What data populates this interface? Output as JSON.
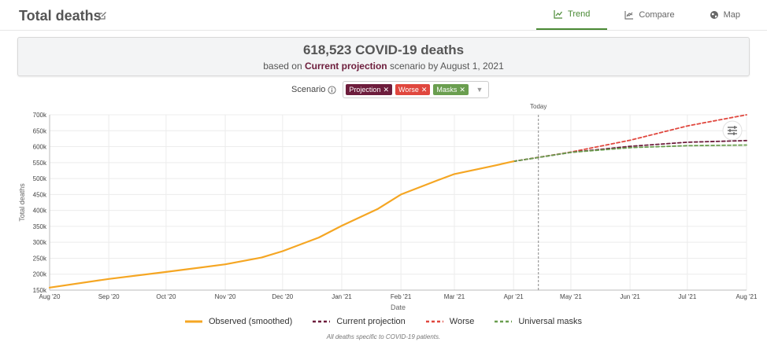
{
  "header": {
    "title": "Total deaths",
    "tabs": [
      {
        "label": "Trend",
        "active": true
      },
      {
        "label": "Compare",
        "active": false
      },
      {
        "label": "Map",
        "active": false
      }
    ]
  },
  "summary": {
    "headline": "618,523 COVID-19 deaths",
    "prefix": "based on ",
    "scenario": "Current projection",
    "suffix": " scenario by August 1, 2021"
  },
  "scenario_filter": {
    "label": "Scenario",
    "chips": [
      {
        "label": "Projection",
        "color": "#6d1d3c"
      },
      {
        "label": "Worse",
        "color": "#e0473e"
      },
      {
        "label": "Masks",
        "color": "#6a9e4f"
      }
    ]
  },
  "footnote": "All deaths specific to COVID-19 patients.",
  "chart_data": {
    "type": "line",
    "xlabel": "Date",
    "ylabel": "Total deaths",
    "x_ticks": [
      "Aug '20",
      "Sep '20",
      "Oct '20",
      "Nov '20",
      "Dec '20",
      "Jan '21",
      "Feb '21",
      "Mar '21",
      "Apr '21",
      "May '21",
      "Jun '21",
      "Jul '21",
      "Aug '21"
    ],
    "y_ticks": [
      "150k",
      "200k",
      "250k",
      "300k",
      "350k",
      "400k",
      "450k",
      "500k",
      "550k",
      "600k",
      "650k",
      "700k"
    ],
    "ylim": [
      150000,
      700000
    ],
    "today_label": "Today",
    "today_x": "2021-04-14",
    "grid": true,
    "legend_position": "bottom",
    "series": [
      {
        "name": "Observed (smoothed)",
        "color": "#f5a623",
        "style": "solid",
        "x": [
          "2020-08-01",
          "2020-09-01",
          "2020-10-01",
          "2020-11-01",
          "2020-11-20",
          "2020-12-01",
          "2020-12-20",
          "2021-01-01",
          "2021-01-20",
          "2021-02-01",
          "2021-02-20",
          "2021-03-01",
          "2021-03-20",
          "2021-04-01"
        ],
        "y": [
          158000,
          185000,
          207000,
          231000,
          252000,
          272000,
          315000,
          352000,
          405000,
          450000,
          494000,
          514000,
          538000,
          554000
        ]
      },
      {
        "name": "Current projection",
        "color": "#6d1d3c",
        "style": "dashed",
        "x": [
          "2021-04-01",
          "2021-05-01",
          "2021-06-01",
          "2021-07-01",
          "2021-08-01"
        ],
        "y": [
          554000,
          582000,
          601000,
          614000,
          619000
        ]
      },
      {
        "name": "Worse",
        "color": "#e0473e",
        "style": "dashed",
        "x": [
          "2021-04-01",
          "2021-05-01",
          "2021-06-01",
          "2021-07-01",
          "2021-08-01"
        ],
        "y": [
          554000,
          583000,
          620000,
          665000,
          700000
        ]
      },
      {
        "name": "Universal masks",
        "color": "#6a9e4f",
        "style": "dashed",
        "x": [
          "2021-04-01",
          "2021-05-01",
          "2021-06-01",
          "2021-07-01",
          "2021-08-01"
        ],
        "y": [
          554000,
          582000,
          597000,
          603000,
          605000
        ]
      }
    ]
  }
}
